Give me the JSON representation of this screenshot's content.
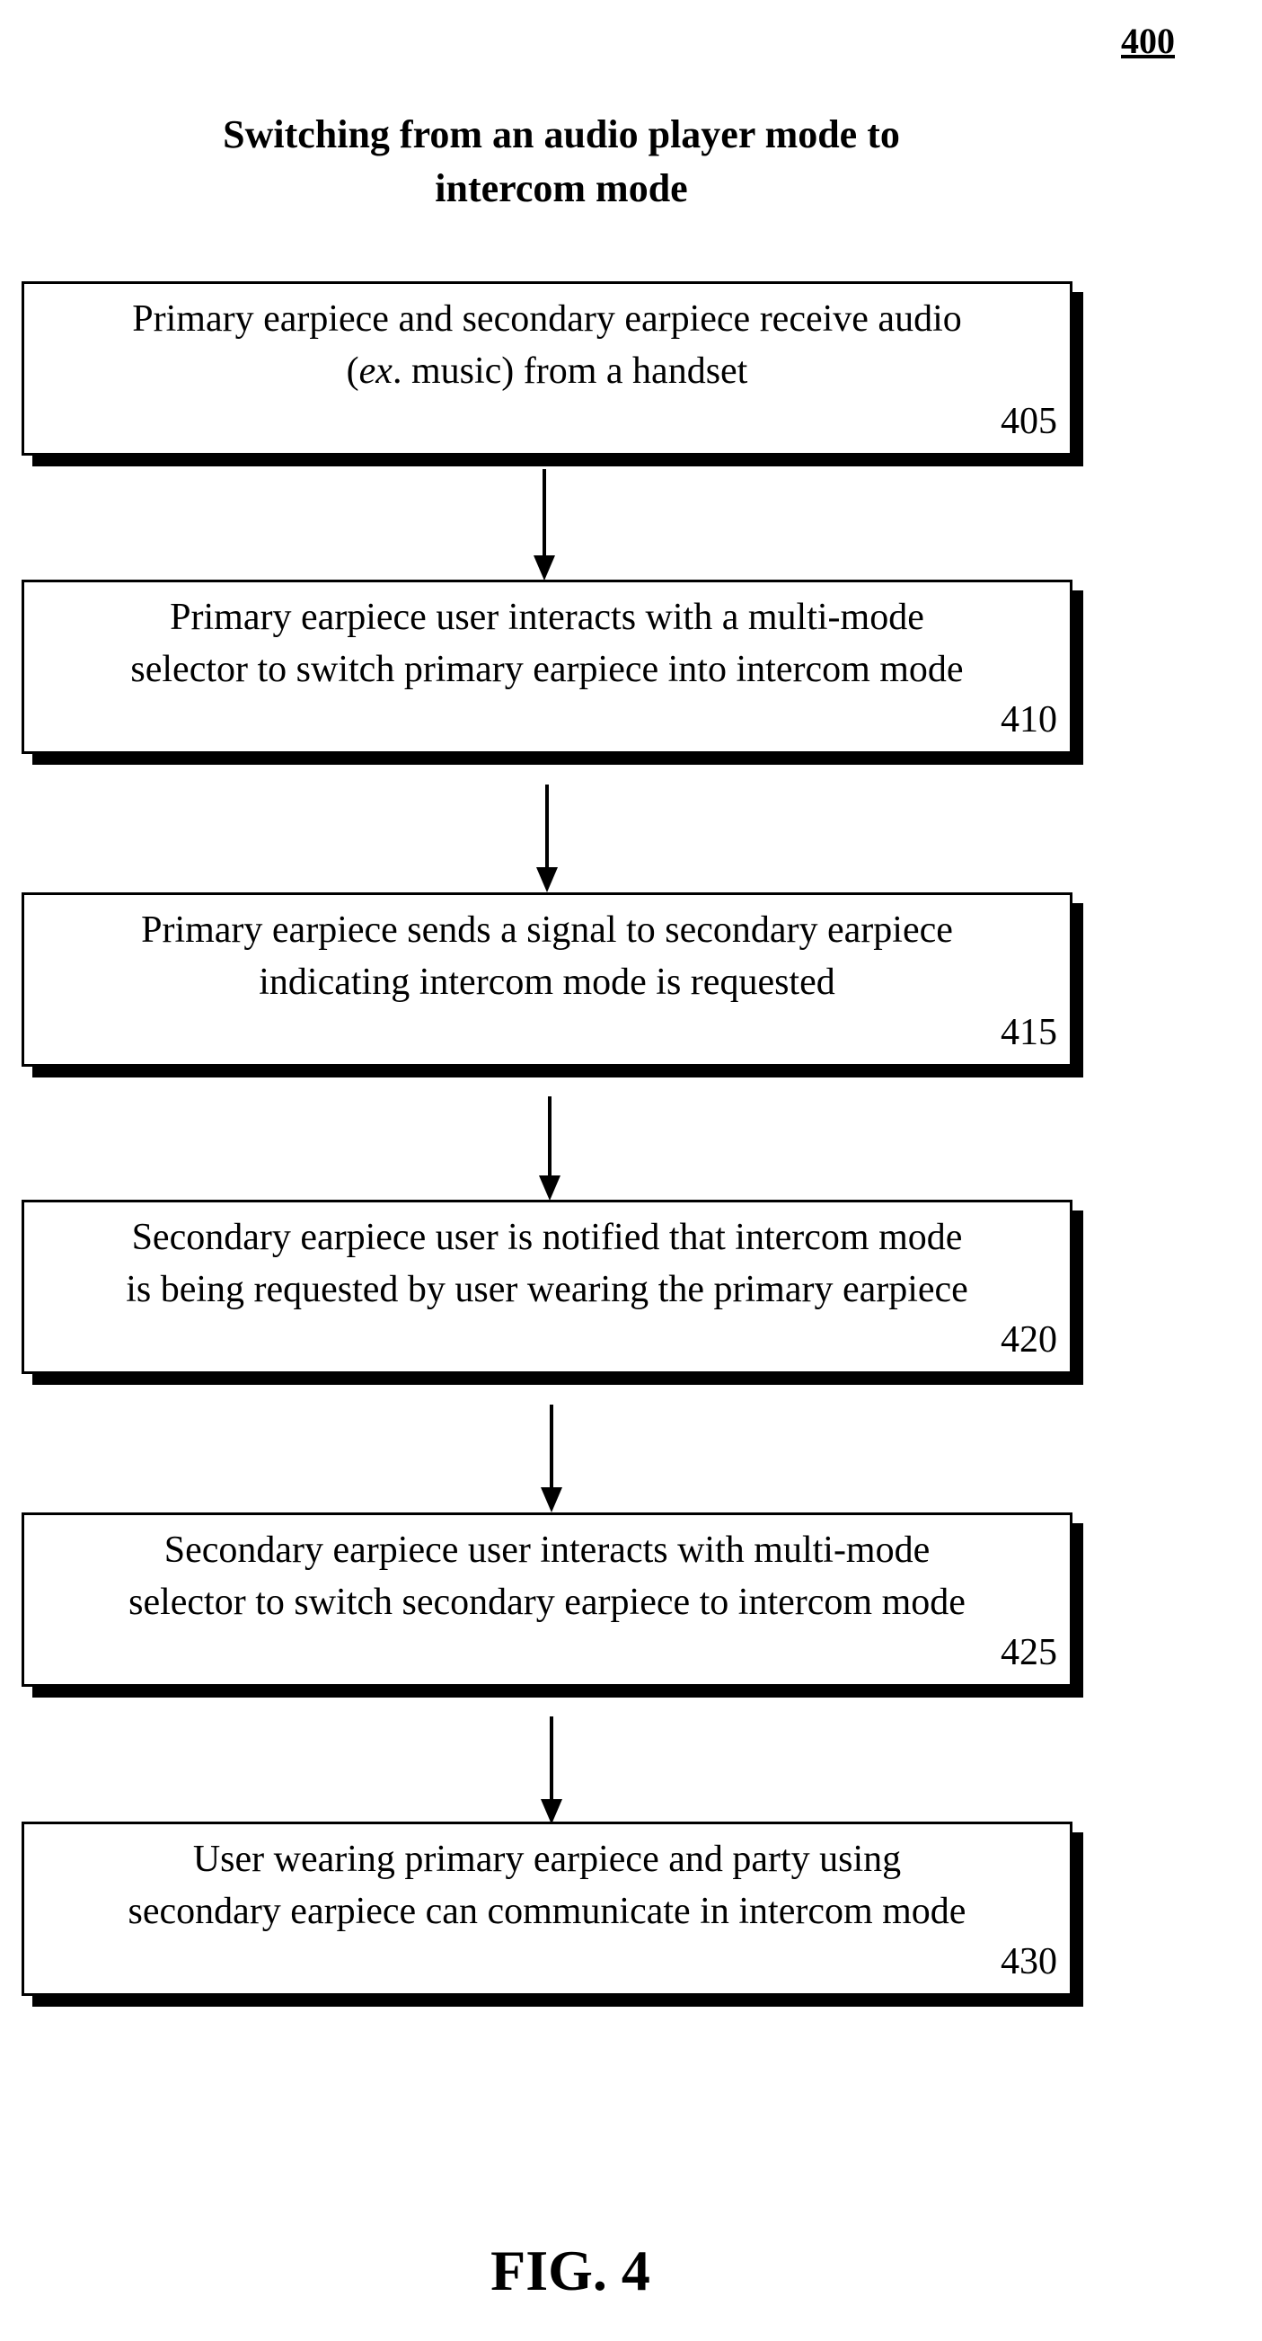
{
  "figure_ref": "400",
  "title_lines": [
    "Switching from an audio player mode to",
    "intercom mode"
  ],
  "steps": [
    {
      "lines": [
        "Primary earpiece and secondary earpiece receive audio",
        "(ex. music) from a handset"
      ],
      "number": "405"
    },
    {
      "lines": [
        "Primary earpiece user interacts with a multi-mode",
        "selector to switch primary earpiece into intercom mode"
      ],
      "number": "410"
    },
    {
      "lines": [
        "Primary earpiece sends a signal to secondary earpiece",
        "indicating intercom mode is requested"
      ],
      "number": "415"
    },
    {
      "lines": [
        "Secondary earpiece user is notified that intercom mode",
        "is being requested by user wearing the primary earpiece"
      ],
      "number": "420"
    },
    {
      "lines": [
        "Secondary earpiece user interacts with multi-mode",
        "selector to switch secondary earpiece to intercom mode"
      ],
      "number": "425"
    },
    {
      "lines": [
        "User wearing primary earpiece and party using",
        "secondary earpiece can communicate in intercom mode"
      ],
      "number": "430"
    }
  ],
  "figure_label": "FIG. 4"
}
